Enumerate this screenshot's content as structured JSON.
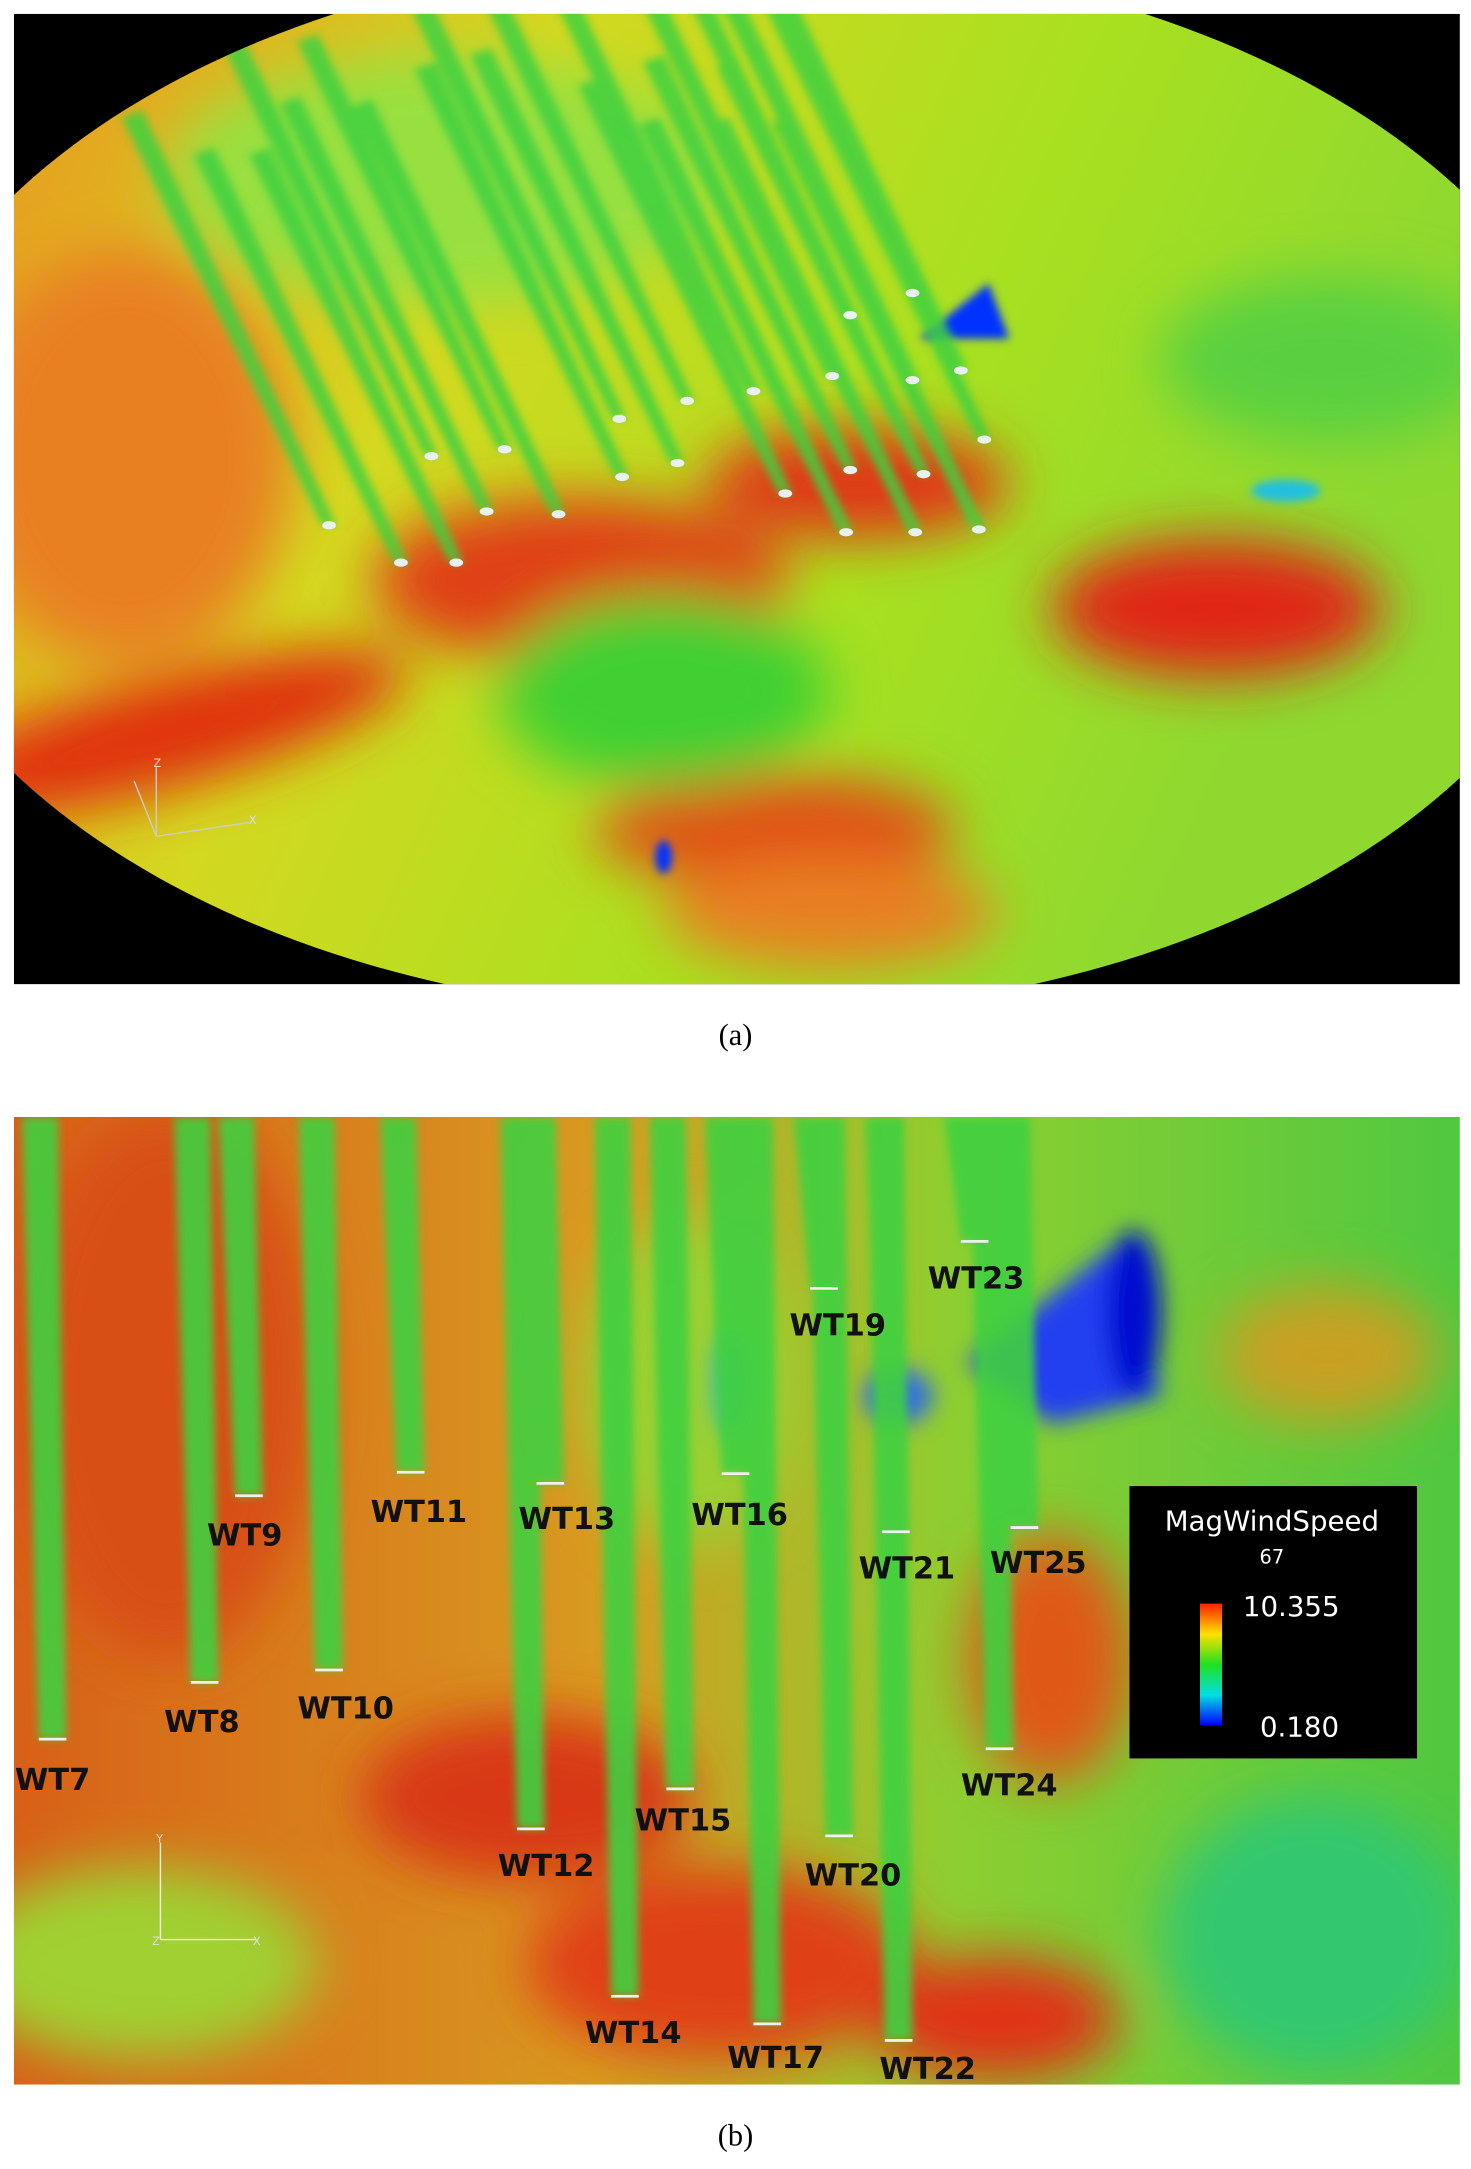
{
  "figure": {
    "panels": [
      {
        "caption": "(a)",
        "axes": [
          "Z",
          "X"
        ]
      },
      {
        "caption": "(b)",
        "axes": [
          "Y",
          "Z",
          "X"
        ],
        "turbines": [
          "WT7",
          "WT8",
          "WT9",
          "WT10",
          "WT11",
          "WT12",
          "WT13",
          "WT14",
          "WT15",
          "WT16",
          "WT17",
          "WT19",
          "WT20",
          "WT21",
          "WT22",
          "WT23",
          "WT24",
          "WT25"
        ],
        "legend": {
          "title": "MagWindSpeed",
          "subtitle": "67",
          "max": "10.355",
          "min": "0.180"
        }
      }
    ]
  }
}
